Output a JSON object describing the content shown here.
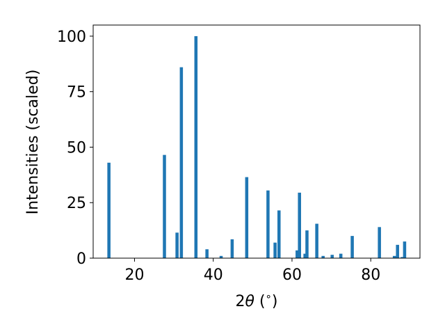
{
  "chart_data": {
    "type": "bar",
    "xlabel_parts": [
      "2",
      "θ",
      " (",
      "∘",
      ")"
    ],
    "ylabel": "Intensities (scaled)",
    "xlim": [
      9.5,
      92.5
    ],
    "ylim": [
      0,
      105
    ],
    "xticks": [
      20,
      40,
      60,
      80
    ],
    "xtick_labels": [
      "20",
      "40",
      "60",
      "80"
    ],
    "yticks": [
      0,
      25,
      50,
      75,
      100
    ],
    "ytick_labels": [
      "0",
      "25",
      "50",
      "75",
      "100"
    ],
    "grid": false,
    "bar_color": "#1f77b4",
    "bar_width": 0.8,
    "x": [
      13.5,
      27.6,
      30.8,
      31.9,
      35.6,
      38.4,
      42.0,
      44.8,
      48.5,
      53.9,
      55.7,
      56.7,
      61.3,
      61.9,
      63.3,
      63.8,
      66.3,
      67.9,
      70.2,
      72.4,
      75.3,
      82.2,
      86.0,
      86.8,
      88.0,
      88.6
    ],
    "values": [
      43,
      46.5,
      11.5,
      86,
      100,
      4,
      1,
      8.5,
      36.5,
      30.5,
      7,
      21.5,
      3.5,
      29.5,
      2,
      12.5,
      15.5,
      1,
      1.5,
      2,
      10,
      14,
      1,
      6,
      0.5,
      7.5
    ]
  }
}
